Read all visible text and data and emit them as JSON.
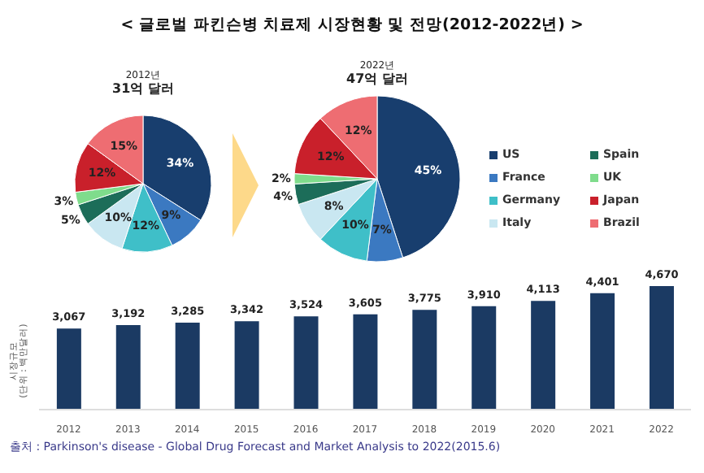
{
  "chart_data": [
    {
      "type": "pie",
      "title": "2012년",
      "subtitle": "31억 달러",
      "categories": [
        null,
        null,
        null,
        null,
        null,
        null,
        null,
        null
      ],
      "values": [
        34,
        9,
        12,
        10,
        5,
        3,
        12,
        15
      ],
      "colors": [
        "#183e6e",
        "#3b79c1",
        "#3fbfc8",
        "#c9e7f1",
        "#1c6d59",
        "#7fdc8c",
        "#c9202b",
        "#ee6d72"
      ],
      "value_labels": [
        "34%",
        "9%",
        "12%",
        "10%",
        "5%",
        "3%",
        "12%",
        "15%"
      ]
    },
    {
      "type": "pie",
      "title": "2022년",
      "subtitle": "47억 달러",
      "categories": [
        "US",
        "France",
        "Germany",
        "Italy",
        "Spain",
        "UK",
        "Japan",
        "Brazil"
      ],
      "values": [
        45,
        7,
        10,
        8,
        4,
        2,
        12,
        12
      ],
      "colors": [
        "#183e6e",
        "#3b79c1",
        "#3fbfc8",
        "#c9e7f1",
        "#1c6d59",
        "#7fdc8c",
        "#c9202b",
        "#ee6d72"
      ],
      "value_labels": [
        "45%",
        "7%",
        "10%",
        "8%",
        "4%",
        "2%",
        "12%",
        "12%"
      ],
      "legend": "right"
    },
    {
      "type": "bar",
      "ylabel": "시장규모\n(단위 : 백만달러)",
      "categories": [
        "2012",
        "2013",
        "2014",
        "2015",
        "2016",
        "2017",
        "2018",
        "2019",
        "2020",
        "2021",
        "2022"
      ],
      "values": [
        3067,
        3192,
        3285,
        3342,
        3524,
        3605,
        3775,
        3910,
        4113,
        4401,
        4670
      ],
      "color": "#1b3a63",
      "value_labels": [
        "3,067",
        "3,192",
        "3,285",
        "3,342",
        "3,524",
        "3,605",
        "3,775",
        "3,910",
        "4,113",
        "4,401",
        "4,670"
      ],
      "annotations": [
        "< 글로벌 파킨슨병 치료제 시장현황 및 전망(2012-2022년) >",
        "출처 : Parkinson's disease - Global Drug Forecast and Market Analysis to 2022(2015.6)"
      ]
    }
  ]
}
